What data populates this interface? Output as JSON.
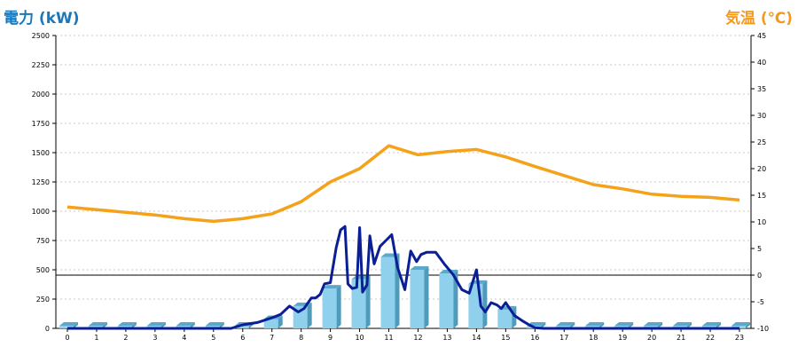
{
  "titles": {
    "left": "電力 (kW)",
    "right": "気温 (℃)"
  },
  "colors": {
    "left_title": "#1a77b9",
    "right_title": "#f39a1e",
    "temperature": "#f5a21b",
    "power_line": "#0a1e96",
    "bar_front": "#8fd0ec",
    "bar_side": "#4e9bbb",
    "bar_top": "#5aa8cb",
    "grid": "#c8c8c8"
  },
  "chart_data": {
    "type": "bar",
    "categories": [
      "0",
      "1",
      "2",
      "3",
      "4",
      "5",
      "6",
      "7",
      "8",
      "9",
      "10",
      "11",
      "12",
      "13",
      "14",
      "15",
      "16",
      "17",
      "18",
      "19",
      "20",
      "21",
      "22",
      "23"
    ],
    "y_left": {
      "ylim": [
        0,
        2500
      ],
      "ticks": [
        0,
        250,
        500,
        750,
        1000,
        1250,
        1500,
        1750,
        2000,
        2250,
        2500
      ]
    },
    "y_right": {
      "ylim": [
        -10,
        45
      ],
      "ticks": [
        -10,
        -5,
        0,
        5,
        10,
        15,
        20,
        25,
        30,
        35,
        40,
        45
      ]
    },
    "grid": true,
    "bar_series": {
      "axis": "left",
      "values": [
        0,
        0,
        0,
        0,
        0,
        0,
        0,
        80,
        190,
        340,
        420,
        610,
        500,
        470,
        380,
        160,
        20,
        0,
        0,
        0,
        0,
        0,
        0,
        0
      ]
    },
    "temperature_series": {
      "axis": "right",
      "x": [
        0,
        1,
        2,
        3,
        4,
        5,
        6,
        7,
        8,
        9,
        10,
        11,
        12,
        13,
        14,
        15,
        16,
        17,
        18,
        19,
        20,
        21,
        22,
        23
      ],
      "values": [
        12.8,
        12.3,
        11.8,
        11.3,
        10.6,
        10.1,
        10.6,
        11.5,
        13.8,
        17.5,
        20,
        24.3,
        22.6,
        23.2,
        23.6,
        22.2,
        20.4,
        18.7,
        17.0,
        16.2,
        15.2,
        14.8,
        14.6,
        14.1
      ]
    },
    "power_series": {
      "axis": "left",
      "x": [
        0,
        5.6,
        6.0,
        6.5,
        7.0,
        7.3,
        7.6,
        7.9,
        8.1,
        8.35,
        8.5,
        8.65,
        8.8,
        9.0,
        9.2,
        9.35,
        9.5,
        9.6,
        9.75,
        9.9,
        10.0,
        10.1,
        10.25,
        10.35,
        10.5,
        10.7,
        10.9,
        11.1,
        11.3,
        11.55,
        11.75,
        11.95,
        12.1,
        12.3,
        12.6,
        12.9,
        13.2,
        13.5,
        13.75,
        14.0,
        14.15,
        14.3,
        14.5,
        14.7,
        14.85,
        15.0,
        15.3,
        15.6,
        15.8,
        16.0,
        16.3,
        23.0
      ],
      "values": [
        0,
        0,
        30,
        50,
        90,
        120,
        190,
        140,
        170,
        260,
        260,
        290,
        380,
        390,
        690,
        840,
        870,
        380,
        340,
        350,
        860,
        310,
        370,
        790,
        550,
        700,
        750,
        800,
        520,
        330,
        660,
        570,
        630,
        650,
        650,
        550,
        460,
        330,
        300,
        500,
        190,
        140,
        220,
        200,
        170,
        220,
        110,
        60,
        30,
        5,
        0,
        0
      ]
    },
    "reference_line": {
      "axis": "right",
      "value": 0
    }
  }
}
